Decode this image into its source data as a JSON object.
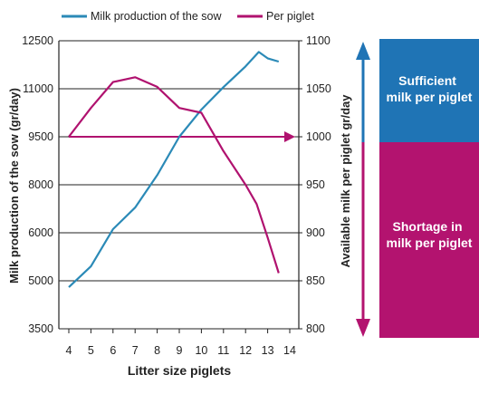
{
  "colors": {
    "sow": "#2b8ab7",
    "piglet": "#b0126f",
    "sufficient_panel": "#1f74b5",
    "shortage_panel": "#b3136f",
    "grid": "#222222",
    "text": "#222222"
  },
  "panel": {
    "sufficient_lines": [
      "Sufficient",
      "milk per piglet"
    ],
    "shortage_lines": [
      "Shortage in",
      "milk per piglet"
    ]
  },
  "chart_data": {
    "type": "line",
    "title": "",
    "legend": {
      "placement": "top",
      "entries": [
        "Milk production of the sow",
        "Per piglet"
      ]
    },
    "xlabel": "Litter size piglets",
    "ylabel_left": "Milk production of the sow (gr/day)",
    "ylabel_right": "Available milk per piglet gr/day",
    "x_ticks": [
      4,
      5,
      6,
      7,
      8,
      9,
      10,
      11,
      12,
      13,
      14
    ],
    "xlim": [
      4,
      14
    ],
    "y_left_ticks": [
      "3500",
      "5000",
      "6000",
      "8000",
      "9500",
      "11000",
      "12500"
    ],
    "y_right_ticks": [
      "800",
      "850",
      "900",
      "950",
      "1000",
      "1050",
      "1100"
    ],
    "ylim_right": [
      800,
      1100
    ],
    "grid": "horizontal",
    "reference_line": {
      "y_right": 1000,
      "arrow": true
    },
    "series": [
      {
        "name": "Milk production of the sow",
        "axis": "left",
        "x": [
          4,
          5,
          6,
          7,
          8,
          9,
          10,
          11,
          12,
          12.6,
          13,
          13.5
        ],
        "y": [
          4800,
          5300,
          6150,
          7050,
          8300,
          9500,
          10350,
          11050,
          11700,
          12150,
          11950,
          11850
        ]
      },
      {
        "name": "Per piglet",
        "axis": "right",
        "x": [
          4,
          5,
          6,
          7,
          8,
          9,
          10,
          11,
          12,
          12.5,
          13,
          13.5
        ],
        "y": [
          1000,
          1030,
          1057,
          1062,
          1052,
          1030,
          1025,
          985,
          950,
          930,
          895,
          858
        ]
      }
    ]
  }
}
